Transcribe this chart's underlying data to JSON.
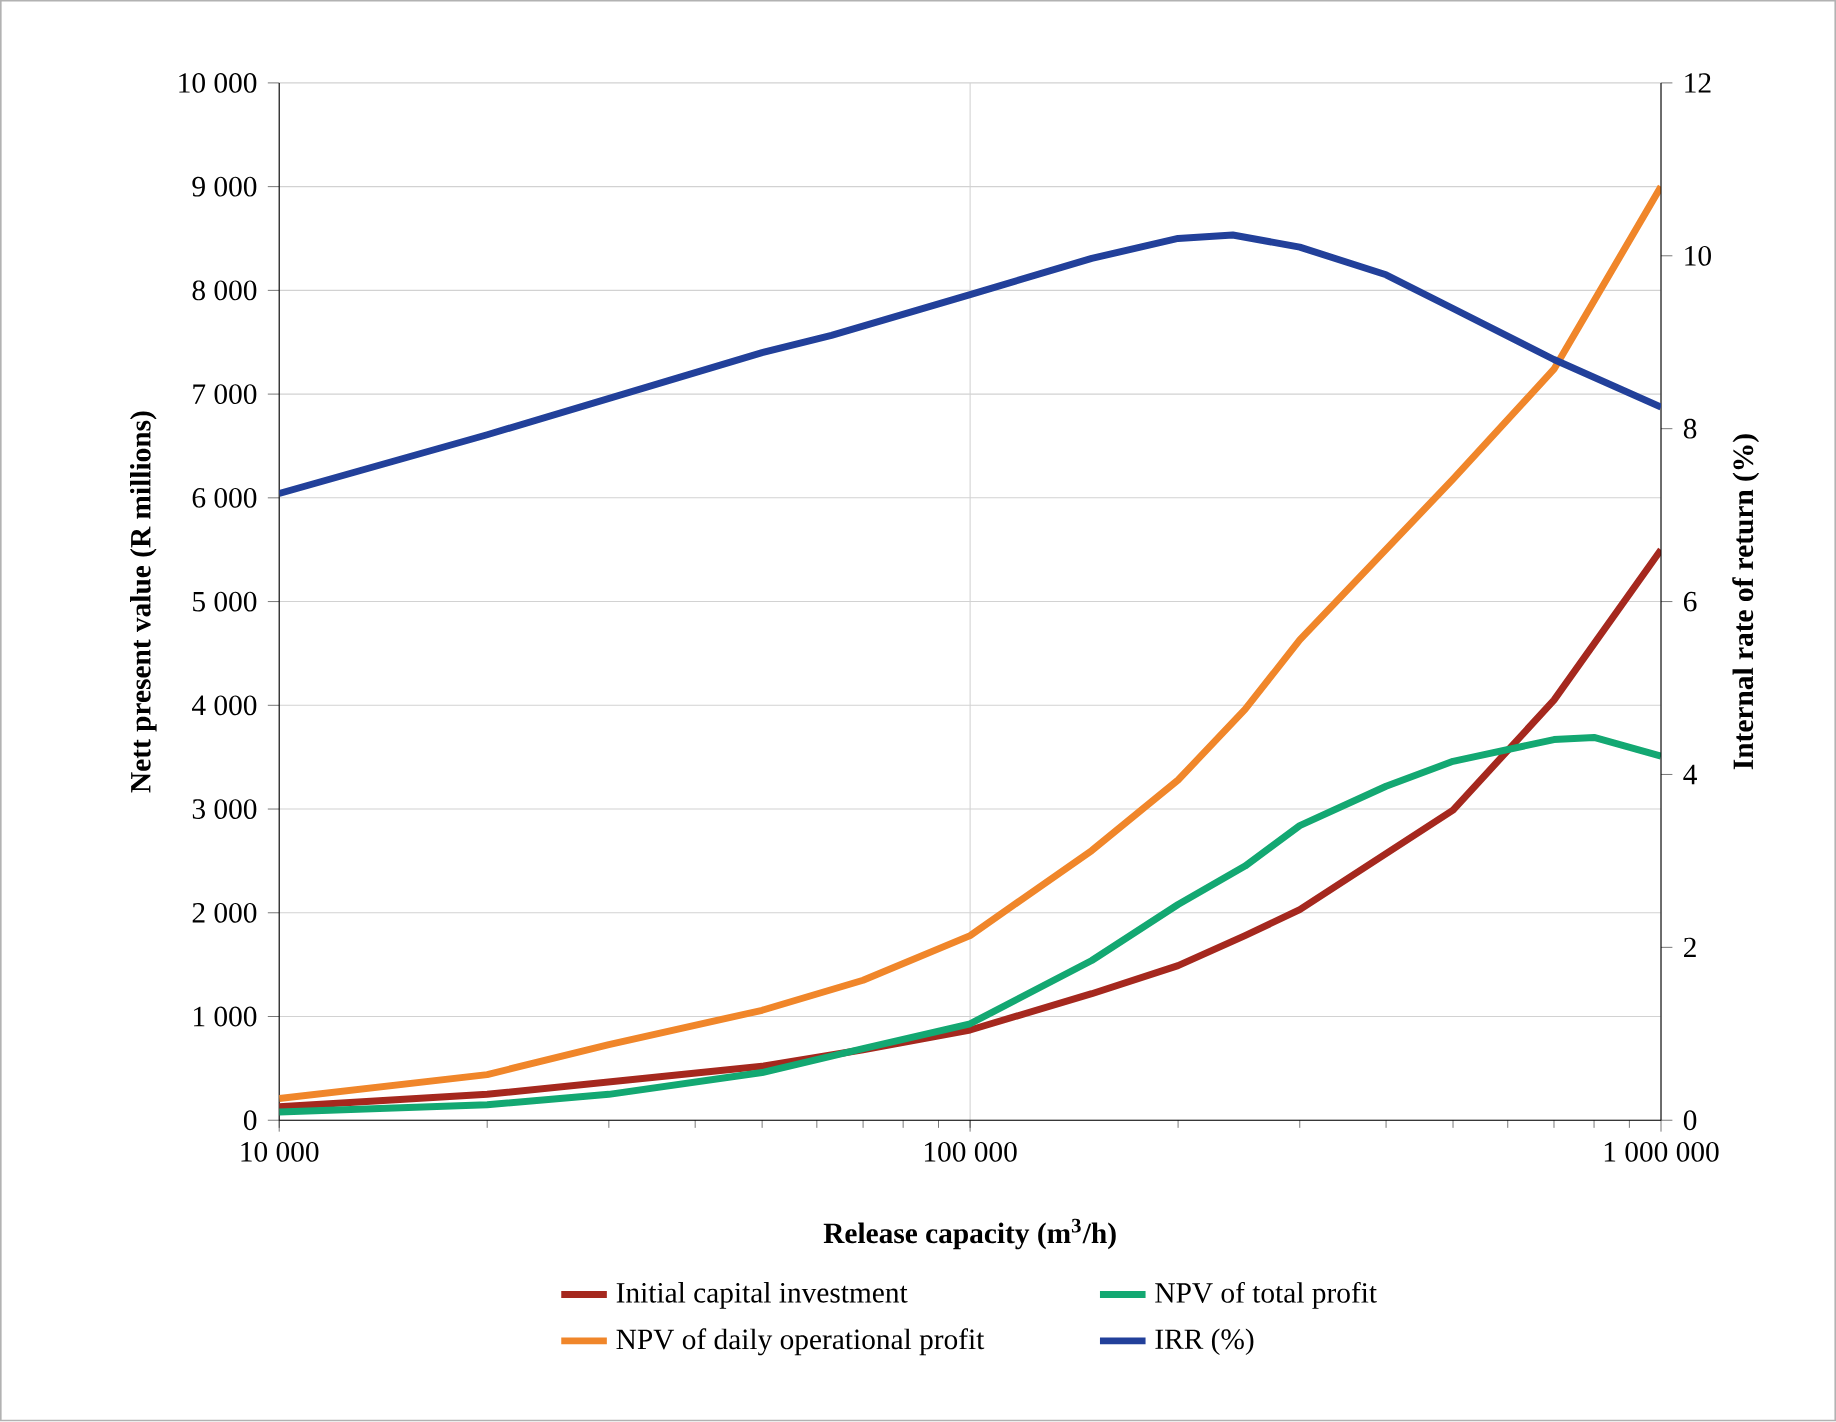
{
  "chart_data": {
    "type": "line",
    "xlabel": "Release capacity (m$^{3}$/h)",
    "ylabel": "Nett present value (R millions)",
    "y2label": "Internal rate of return (%)",
    "log": "x",
    "grid": true,
    "legend": "bottom",
    "marker": "none",
    "line_style": "solid",
    "xlim": [
      10000,
      1000000
    ],
    "xticks": [
      {
        "value": 10000,
        "label": "10 000"
      },
      {
        "value": 100000,
        "label": "100 000"
      },
      {
        "value": 1000000,
        "label": "1 000 000"
      }
    ],
    "ylim": [
      0,
      10000
    ],
    "yticks": [
      0,
      {
        "value": 1000,
        "label": "1 000"
      },
      {
        "value": 2000,
        "label": "2 000"
      },
      {
        "value": 3000,
        "label": "3 000"
      },
      {
        "value": 4000,
        "label": "4 000"
      },
      {
        "value": 5000,
        "label": "5 000"
      },
      {
        "value": 6000,
        "label": "6 000"
      },
      {
        "value": 7000,
        "label": "7 000"
      },
      {
        "value": 8000,
        "label": "8 000"
      },
      {
        "value": 9000,
        "label": "9 000"
      },
      {
        "value": 10000,
        "label": "10 000"
      }
    ],
    "y2lim": [
      0,
      12
    ],
    "y2ticks": [
      0,
      2,
      4,
      6,
      8,
      10,
      12
    ],
    "series": [
      {
        "name": "Initial capital investment",
        "color": "#a5281e",
        "x": [
          10000,
          20000,
          50000,
          70000,
          100000,
          150000,
          200000,
          250000,
          300000,
          500000,
          700000,
          1000000
        ],
        "values": [
          130,
          250,
          520,
          680,
          870,
          1220,
          1490,
          1780,
          2030,
          2990,
          4050,
          5500
        ]
      },
      {
        "name": "NPV of total profit",
        "color": "#13a872",
        "x": [
          10000,
          20000,
          30000,
          50000,
          70000,
          100000,
          150000,
          200000,
          250000,
          300000,
          400000,
          500000,
          700000,
          800000,
          1000000
        ],
        "values": [
          80,
          150,
          250,
          460,
          690,
          930,
          1540,
          2080,
          2450,
          2840,
          3220,
          3460,
          3670,
          3690,
          3510
        ]
      },
      {
        "name": "NPV of daily operational profit",
        "color": "#f0862a",
        "x": [
          10000,
          20000,
          30000,
          50000,
          70000,
          100000,
          150000,
          200000,
          250000,
          300000,
          500000,
          700000,
          1000000
        ],
        "values": [
          210,
          440,
          730,
          1060,
          1350,
          1780,
          2600,
          3280,
          3960,
          4630,
          6180,
          7240,
          9000
        ]
      },
      {
        "name": "IRR (%)",
        "color": "#22409a",
        "axis": "y2",
        "x": [
          10000,
          20000,
          50000,
          63000,
          100000,
          150000,
          200000,
          240000,
          300000,
          400000,
          500000,
          700000,
          1000000
        ],
        "values": [
          7.25,
          7.93,
          8.88,
          9.08,
          9.55,
          9.97,
          10.2,
          10.24,
          10.1,
          9.78,
          9.39,
          8.8,
          8.25
        ]
      }
    ]
  }
}
